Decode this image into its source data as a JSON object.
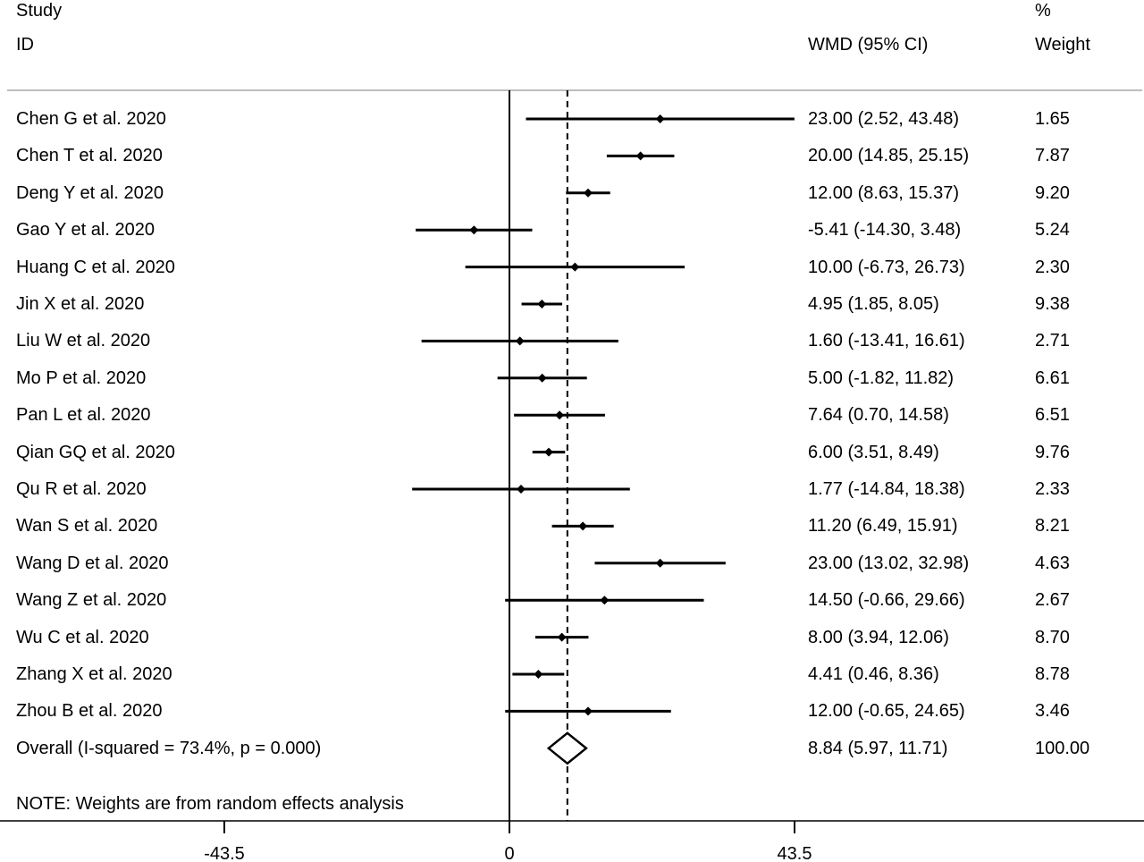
{
  "header": {
    "study_label": "Study",
    "id_label": "ID",
    "effect_label": "WMD (95% CI)",
    "percent_label": "%",
    "weight_label": "Weight"
  },
  "note": "NOTE: Weights are from random effects analysis",
  "chart_data": {
    "type": "forest",
    "measure": "WMD (95% CI)",
    "null_line": 0,
    "xlim": [
      -43.5,
      43.5
    ],
    "xticks": [
      -43.5,
      0,
      43.5
    ],
    "xtick_labels": [
      "-43.5",
      "0",
      "43.5"
    ],
    "studies": [
      {
        "label": "Chen G et al. 2020",
        "est": 23.0,
        "lo": 2.52,
        "hi": 43.48,
        "ci_text": "23.00 (2.52, 43.48)",
        "weight": "1.65"
      },
      {
        "label": "Chen T et al. 2020",
        "est": 20.0,
        "lo": 14.85,
        "hi": 25.15,
        "ci_text": "20.00 (14.85, 25.15)",
        "weight": "7.87"
      },
      {
        "label": "Deng Y et al. 2020",
        "est": 12.0,
        "lo": 8.63,
        "hi": 15.37,
        "ci_text": "12.00 (8.63, 15.37)",
        "weight": "9.20"
      },
      {
        "label": "Gao Y et al. 2020",
        "est": -5.41,
        "lo": -14.3,
        "hi": 3.48,
        "ci_text": "-5.41 (-14.30, 3.48)",
        "weight": "5.24"
      },
      {
        "label": "Huang C et al. 2020",
        "est": 10.0,
        "lo": -6.73,
        "hi": 26.73,
        "ci_text": "10.00 (-6.73, 26.73)",
        "weight": "2.30"
      },
      {
        "label": "Jin X et al. 2020",
        "est": 4.95,
        "lo": 1.85,
        "hi": 8.05,
        "ci_text": "4.95 (1.85, 8.05)",
        "weight": "9.38"
      },
      {
        "label": "Liu W et al. 2020",
        "est": 1.6,
        "lo": -13.41,
        "hi": 16.61,
        "ci_text": "1.60 (-13.41, 16.61)",
        "weight": "2.71"
      },
      {
        "label": "Mo P et al. 2020",
        "est": 5.0,
        "lo": -1.82,
        "hi": 11.82,
        "ci_text": "5.00 (-1.82, 11.82)",
        "weight": "6.61"
      },
      {
        "label": "Pan L et al. 2020",
        "est": 7.64,
        "lo": 0.7,
        "hi": 14.58,
        "ci_text": "7.64 (0.70, 14.58)",
        "weight": "6.51"
      },
      {
        "label": "Qian GQ et al. 2020",
        "est": 6.0,
        "lo": 3.51,
        "hi": 8.49,
        "ci_text": "6.00 (3.51, 8.49)",
        "weight": "9.76"
      },
      {
        "label": "Qu R et al. 2020",
        "est": 1.77,
        "lo": -14.84,
        "hi": 18.38,
        "ci_text": "1.77 (-14.84, 18.38)",
        "weight": "2.33"
      },
      {
        "label": "Wan S et al. 2020",
        "est": 11.2,
        "lo": 6.49,
        "hi": 15.91,
        "ci_text": "11.20 (6.49, 15.91)",
        "weight": "8.21"
      },
      {
        "label": "Wang D et al. 2020",
        "est": 23.0,
        "lo": 13.02,
        "hi": 32.98,
        "ci_text": "23.00 (13.02, 32.98)",
        "weight": "4.63"
      },
      {
        "label": "Wang Z et al. 2020",
        "est": 14.5,
        "lo": -0.66,
        "hi": 29.66,
        "ci_text": "14.50 (-0.66, 29.66)",
        "weight": "2.67"
      },
      {
        "label": "Wu C et al. 2020",
        "est": 8.0,
        "lo": 3.94,
        "hi": 12.06,
        "ci_text": "8.00 (3.94, 12.06)",
        "weight": "8.70"
      },
      {
        "label": "Zhang X et al. 2020",
        "est": 4.41,
        "lo": 0.46,
        "hi": 8.36,
        "ci_text": "4.41 (0.46, 8.36)",
        "weight": "8.78"
      },
      {
        "label": "Zhou B et al. 2020",
        "est": 12.0,
        "lo": -0.65,
        "hi": 24.65,
        "ci_text": "12.00 (-0.65, 24.65)",
        "weight": "3.46"
      }
    ],
    "overall": {
      "label": "Overall  (I-squared = 73.4%, p = 0.000)",
      "est": 8.84,
      "lo": 5.97,
      "hi": 11.71,
      "ci_text": "8.84 (5.97, 11.71)",
      "weight": "100.00"
    },
    "colors": {
      "line": "#000000",
      "separator": "#bdbdbd",
      "background": "#ffffff"
    }
  }
}
